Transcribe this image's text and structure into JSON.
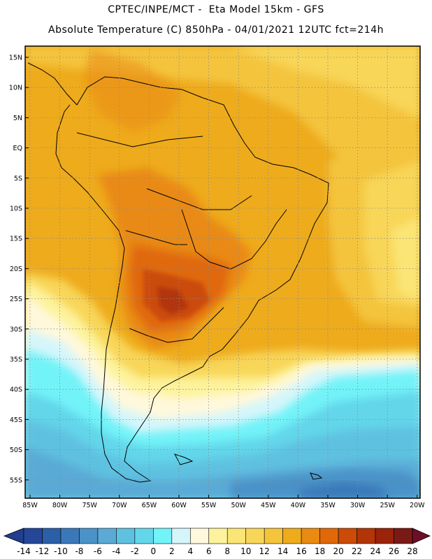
{
  "header": {
    "line1": "CPTEC/INPE/MCT -  Eta Model 15km - GFS",
    "line2": "Absolute Temperature (C) 850hPa - 04/01/2021 12UTC fct=214h"
  },
  "axes": {
    "lat_labels": [
      "15N",
      "10N",
      "5N",
      "EQ",
      "5S",
      "10S",
      "15S",
      "20S",
      "25S",
      "30S",
      "35S",
      "40S",
      "45S",
      "50S",
      "55S"
    ],
    "lon_labels": [
      "85W",
      "80W",
      "75W",
      "70W",
      "65W",
      "60W",
      "55W",
      "50W",
      "45W",
      "40W",
      "35W",
      "30W",
      "25W",
      "20W"
    ]
  },
  "colorbar": {
    "ticks": [
      "-14",
      "-12",
      "-10",
      "-8",
      "-6",
      "-4",
      "-2",
      "0",
      "2",
      "4",
      "6",
      "8",
      "10",
      "12",
      "14",
      "16",
      "18",
      "20",
      "22",
      "24",
      "26",
      "28"
    ],
    "colors": [
      "#24479a",
      "#2b5fa8",
      "#3a79b9",
      "#4a92c8",
      "#5aaad5",
      "#5fc1e0",
      "#63d6ea",
      "#72f3f8",
      "#d4f6fb",
      "#fff8dc",
      "#fdf39c",
      "#fbe576",
      "#f8d659",
      "#f4c43c",
      "#eeab1c",
      "#e98a12",
      "#e06808",
      "#cb4b07",
      "#b23508",
      "#9a2309",
      "#7a1a16"
    ],
    "under_color": "#203f8e",
    "over_color": "#6e0f28"
  }
}
